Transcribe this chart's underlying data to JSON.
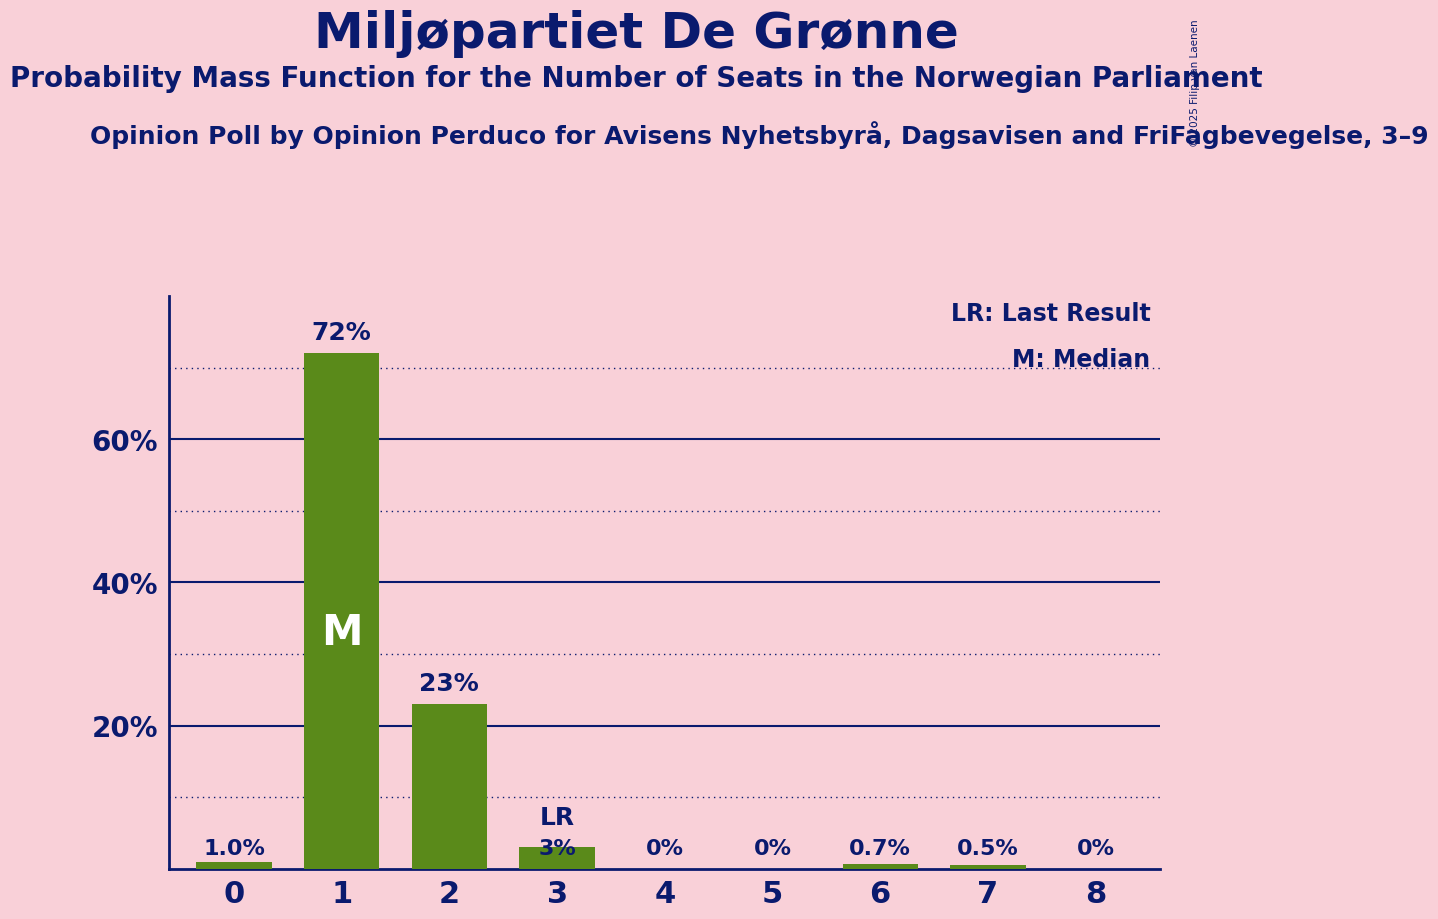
{
  "title": "Miljøpartiet De Grønne",
  "subtitle": "Probability Mass Function for the Number of Seats in the Norwegian Parliament",
  "subtitle2": "Opinion Poll by Opinion Perduco for Avisens Nyhetsbyrå, Dagsavisen and FriFagbevegelse, 3–9",
  "watermark": "© 2025 Filip van Laenen",
  "categories": [
    0,
    1,
    2,
    3,
    4,
    5,
    6,
    7,
    8
  ],
  "values": [
    1.0,
    72.0,
    23.0,
    3.0,
    0.0,
    0.0,
    0.7,
    0.5,
    0.0
  ],
  "bar_labels": [
    "1.0%",
    "72%",
    "23%",
    "3%",
    "0%",
    "0%",
    "0.7%",
    "0.5%",
    "0%"
  ],
  "bar_color": "#5a8a1a",
  "median_bar": 1,
  "lr_bar": 3,
  "background_color": "#f9d0d8",
  "text_color": "#0a1a6e",
  "title_fontsize": 36,
  "subtitle_fontsize": 20,
  "subtitle2_fontsize": 18,
  "yticks": [
    20,
    40,
    60
  ],
  "ylim": [
    0,
    80
  ],
  "legend_lr": "LR: Last Result",
  "legend_m": "M: Median",
  "solid_line_values": [
    20,
    40,
    60
  ],
  "dotted_line_values": [
    10,
    30,
    50,
    70
  ]
}
